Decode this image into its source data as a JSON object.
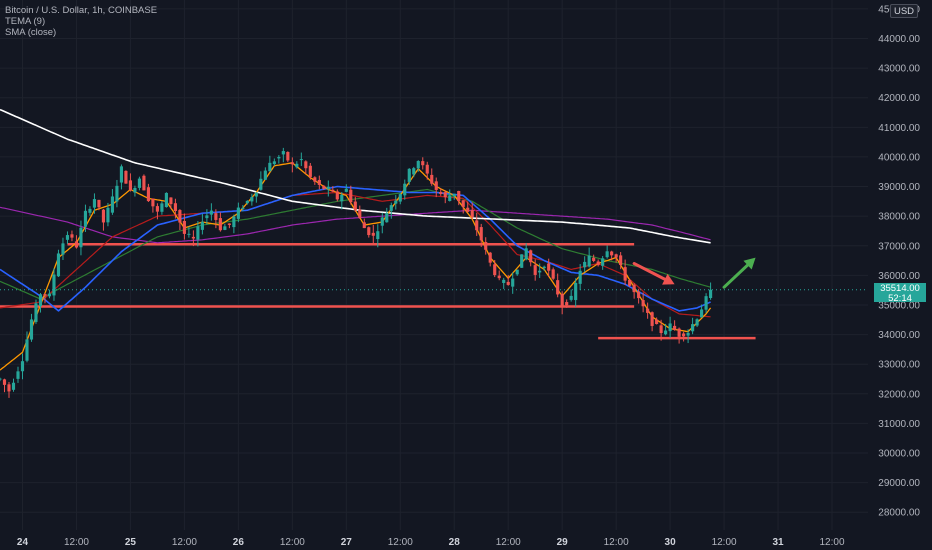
{
  "header": {
    "symbol_line": "Bitcoin / U.S. Dollar, 1h, COINBASE",
    "indicators": [
      "TEMA (9)",
      "SMA (close)"
    ],
    "currency_button": "USD"
  },
  "last_price": {
    "value": "35514.00",
    "countdown": "52:14",
    "color": "#26a69a"
  },
  "colors": {
    "background": "#131722",
    "up": "#26a69a",
    "down": "#ef5350",
    "grid": "#1e222d",
    "axis_text": "#b2b5be"
  },
  "chart_data": {
    "type": "candlestick",
    "symbol": "Bitcoin / U.S. Dollar",
    "timeframe": "1h",
    "exchange": "COINBASE",
    "y_axis_ticks": [
      28000,
      29000,
      30000,
      31000,
      32000,
      33000,
      34000,
      35000,
      36000,
      37000,
      38000,
      39000,
      40000,
      41000,
      42000,
      43000,
      44000,
      45000
    ],
    "y_tick_labels": [
      "28000.00",
      "29000.00",
      "30000.00",
      "31000.00",
      "32000.00",
      "33000.00",
      "34000.00",
      "35000.00",
      "36000.00",
      "37000.00",
      "38000.00",
      "39000.00",
      "40000.00",
      "41000.00",
      "42000.00",
      "43000.00",
      "44000.00",
      "45000.00"
    ],
    "ylim": [
      27400,
      45300
    ],
    "x_axis_labels": [
      {
        "label": "24",
        "bold": true,
        "hour": 0
      },
      {
        "label": "12:00",
        "bold": false,
        "hour": 12
      },
      {
        "label": "25",
        "bold": true,
        "hour": 24
      },
      {
        "label": "12:00",
        "bold": false,
        "hour": 36
      },
      {
        "label": "26",
        "bold": true,
        "hour": 48
      },
      {
        "label": "12:00",
        "bold": false,
        "hour": 60
      },
      {
        "label": "27",
        "bold": true,
        "hour": 72
      },
      {
        "label": "12:00",
        "bold": false,
        "hour": 84
      },
      {
        "label": "28",
        "bold": true,
        "hour": 96
      },
      {
        "label": "12:00",
        "bold": false,
        "hour": 108
      },
      {
        "label": "29",
        "bold": true,
        "hour": 120
      },
      {
        "label": "12:00",
        "bold": false,
        "hour": 132
      },
      {
        "label": "30",
        "bold": true,
        "hour": 144
      },
      {
        "label": "12:00",
        "bold": false,
        "hour": 156
      },
      {
        "label": "31",
        "bold": true,
        "hour": 168
      },
      {
        "label": "12:00",
        "bold": false,
        "hour": 180
      }
    ],
    "xlim_hours": [
      -5,
      188
    ],
    "price_anchors": [
      [
        -5,
        32500
      ],
      [
        -3,
        32100
      ],
      [
        0,
        33200
      ],
      [
        2,
        34500
      ],
      [
        4,
        35400
      ],
      [
        6,
        35300
      ],
      [
        8,
        36800
      ],
      [
        10,
        37400
      ],
      [
        12,
        37000
      ],
      [
        14,
        38100
      ],
      [
        16,
        38600
      ],
      [
        18,
        37800
      ],
      [
        20,
        38600
      ],
      [
        22,
        39600
      ],
      [
        24,
        38800
      ],
      [
        26,
        39300
      ],
      [
        28,
        38600
      ],
      [
        30,
        38100
      ],
      [
        32,
        38700
      ],
      [
        34,
        38200
      ],
      [
        36,
        37400
      ],
      [
        38,
        37200
      ],
      [
        40,
        37900
      ],
      [
        42,
        38200
      ],
      [
        44,
        37600
      ],
      [
        46,
        37700
      ],
      [
        48,
        38200
      ],
      [
        50,
        38500
      ],
      [
        52,
        38900
      ],
      [
        54,
        39600
      ],
      [
        56,
        39900
      ],
      [
        58,
        40100
      ],
      [
        60,
        39700
      ],
      [
        62,
        39900
      ],
      [
        64,
        39300
      ],
      [
        66,
        39000
      ],
      [
        68,
        38900
      ],
      [
        70,
        38600
      ],
      [
        72,
        38900
      ],
      [
        74,
        38200
      ],
      [
        76,
        37600
      ],
      [
        78,
        37300
      ],
      [
        80,
        37900
      ],
      [
        82,
        38400
      ],
      [
        84,
        38800
      ],
      [
        86,
        39500
      ],
      [
        88,
        39900
      ],
      [
        90,
        39400
      ],
      [
        92,
        38900
      ],
      [
        94,
        38600
      ],
      [
        96,
        38800
      ],
      [
        98,
        38300
      ],
      [
        100,
        37900
      ],
      [
        102,
        37200
      ],
      [
        104,
        36400
      ],
      [
        106,
        35800
      ],
      [
        108,
        35700
      ],
      [
        110,
        36300
      ],
      [
        112,
        36900
      ],
      [
        114,
        36000
      ],
      [
        116,
        36400
      ],
      [
        118,
        35800
      ],
      [
        120,
        35000
      ],
      [
        122,
        35200
      ],
      [
        124,
        36200
      ],
      [
        126,
        36600
      ],
      [
        128,
        36400
      ],
      [
        130,
        36900
      ],
      [
        132,
        36600
      ],
      [
        134,
        35900
      ],
      [
        136,
        35400
      ],
      [
        138,
        34900
      ],
      [
        140,
        34400
      ],
      [
        142,
        34100
      ],
      [
        144,
        34300
      ],
      [
        146,
        34000
      ],
      [
        148,
        34100
      ],
      [
        150,
        34600
      ],
      [
        152,
        35200
      ],
      [
        153,
        35514
      ]
    ],
    "tema_anchors": [
      [
        -5,
        32800
      ],
      [
        0,
        33400
      ],
      [
        4,
        35000
      ],
      [
        8,
        36600
      ],
      [
        12,
        37100
      ],
      [
        16,
        38200
      ],
      [
        20,
        38400
      ],
      [
        24,
        38900
      ],
      [
        28,
        38600
      ],
      [
        32,
        38500
      ],
      [
        36,
        37600
      ],
      [
        40,
        37800
      ],
      [
        44,
        37700
      ],
      [
        48,
        38100
      ],
      [
        52,
        38800
      ],
      [
        56,
        39700
      ],
      [
        60,
        39800
      ],
      [
        64,
        39300
      ],
      [
        68,
        38900
      ],
      [
        72,
        38700
      ],
      [
        76,
        37700
      ],
      [
        80,
        37800
      ],
      [
        84,
        38700
      ],
      [
        88,
        39600
      ],
      [
        92,
        39000
      ],
      [
        96,
        38700
      ],
      [
        100,
        37900
      ],
      [
        104,
        36600
      ],
      [
        108,
        35900
      ],
      [
        112,
        36600
      ],
      [
        116,
        36200
      ],
      [
        120,
        35300
      ],
      [
        124,
        36000
      ],
      [
        128,
        36400
      ],
      [
        132,
        36600
      ],
      [
        136,
        35600
      ],
      [
        140,
        34600
      ],
      [
        144,
        34200
      ],
      [
        148,
        34100
      ],
      [
        152,
        34700
      ],
      [
        153,
        34900
      ]
    ],
    "sma_white_anchors": [
      [
        -5,
        41600
      ],
      [
        10,
        40600
      ],
      [
        25,
        39800
      ],
      [
        45,
        39100
      ],
      [
        60,
        38500
      ],
      [
        75,
        38200
      ],
      [
        90,
        38000
      ],
      [
        105,
        37900
      ],
      [
        120,
        37800
      ],
      [
        135,
        37600
      ],
      [
        145,
        37300
      ],
      [
        153,
        37100
      ]
    ],
    "ma_blue_anchors": [
      [
        -5,
        36200
      ],
      [
        4,
        35300
      ],
      [
        8,
        34800
      ],
      [
        14,
        35600
      ],
      [
        22,
        36800
      ],
      [
        30,
        37700
      ],
      [
        40,
        38100
      ],
      [
        50,
        38200
      ],
      [
        60,
        38700
      ],
      [
        70,
        39000
      ],
      [
        78,
        38900
      ],
      [
        86,
        38800
      ],
      [
        92,
        38800
      ],
      [
        98,
        38700
      ],
      [
        104,
        37900
      ],
      [
        110,
        37000
      ],
      [
        116,
        36500
      ],
      [
        122,
        36100
      ],
      [
        128,
        36000
      ],
      [
        134,
        35700
      ],
      [
        140,
        35200
      ],
      [
        146,
        34800
      ],
      [
        150,
        34900
      ],
      [
        153,
        35100
      ]
    ],
    "ma_green_anchors": [
      [
        -5,
        35800
      ],
      [
        4,
        35200
      ],
      [
        10,
        35700
      ],
      [
        20,
        36500
      ],
      [
        30,
        37300
      ],
      [
        40,
        37700
      ],
      [
        50,
        37900
      ],
      [
        60,
        38200
      ],
      [
        70,
        38500
      ],
      [
        80,
        38700
      ],
      [
        90,
        38900
      ],
      [
        100,
        38500
      ],
      [
        110,
        37600
      ],
      [
        120,
        36900
      ],
      [
        130,
        36500
      ],
      [
        140,
        36200
      ],
      [
        146,
        35900
      ],
      [
        153,
        35600
      ]
    ],
    "ma_red_anchors": [
      [
        -5,
        34900
      ],
      [
        4,
        35100
      ],
      [
        12,
        36200
      ],
      [
        20,
        37300
      ],
      [
        30,
        38000
      ],
      [
        40,
        38100
      ],
      [
        50,
        38200
      ],
      [
        60,
        38700
      ],
      [
        70,
        38800
      ],
      [
        80,
        38500
      ],
      [
        90,
        38700
      ],
      [
        98,
        38600
      ],
      [
        104,
        37700
      ],
      [
        110,
        36700
      ],
      [
        116,
        36500
      ],
      [
        122,
        36200
      ],
      [
        128,
        36400
      ],
      [
        134,
        36000
      ],
      [
        140,
        35200
      ],
      [
        146,
        34700
      ],
      [
        153,
        34600
      ]
    ],
    "ma_purple_anchors": [
      [
        -5,
        38300
      ],
      [
        10,
        37800
      ],
      [
        20,
        37300
      ],
      [
        30,
        37100
      ],
      [
        40,
        37200
      ],
      [
        50,
        37400
      ],
      [
        60,
        37700
      ],
      [
        70,
        37900
      ],
      [
        80,
        38000
      ],
      [
        90,
        38100
      ],
      [
        100,
        38200
      ],
      [
        110,
        38100
      ],
      [
        120,
        38000
      ],
      [
        130,
        37900
      ],
      [
        140,
        37700
      ],
      [
        148,
        37400
      ],
      [
        153,
        37200
      ]
    ],
    "horizontal_levels": [
      {
        "price": 37050,
        "from_hour": 10,
        "to_hour": 136
      },
      {
        "price": 34950,
        "from_hour": -5,
        "to_hour": 136
      },
      {
        "price": 33880,
        "from_hour": 128,
        "to_hour": 163
      }
    ],
    "arrows": [
      {
        "color": "#ef5350",
        "from": [
          136,
          36400
        ],
        "to": [
          145,
          35700
        ]
      },
      {
        "color": "#4caf50",
        "from": [
          156,
          35600
        ],
        "to": [
          163,
          36600
        ]
      }
    ],
    "last_price_value": 35514
  }
}
